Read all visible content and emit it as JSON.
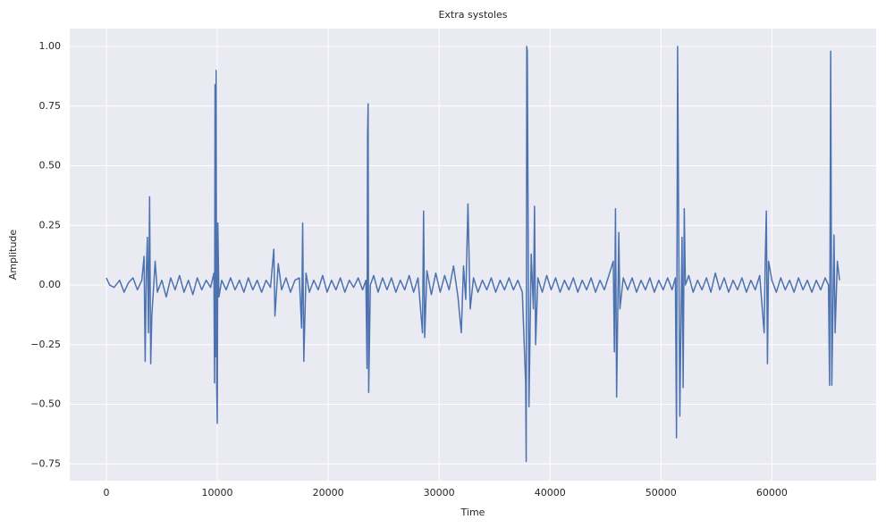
{
  "chart_data": {
    "type": "line",
    "title": "Extra systoles",
    "x_label": "Time",
    "y_label": "Amplitude",
    "xlim": [
      -3300,
      69400
    ],
    "ylim": [
      -0.82,
      1.075
    ],
    "xticks": [
      0,
      10000,
      20000,
      30000,
      40000,
      50000,
      60000
    ],
    "yticks": [
      {
        "value": -0.75,
        "label": "−0.75"
      },
      {
        "value": -0.5,
        "label": "−0.50"
      },
      {
        "value": -0.25,
        "label": "−0.25"
      },
      {
        "value": 0,
        "label": "0.00"
      },
      {
        "value": 0.25,
        "label": "0.25"
      },
      {
        "value": 0.5,
        "label": "0.50"
      },
      {
        "value": 0.75,
        "label": "0.75"
      },
      {
        "value": 1,
        "label": "1.00"
      }
    ],
    "grid": true,
    "series": [
      {
        "color": "#4c72b0",
        "x": [
          0,
          300,
          700,
          1200,
          1600,
          2000,
          2400,
          2800,
          3200,
          3400,
          3500,
          3600,
          3700,
          3800,
          3900,
          4000,
          4100,
          4300,
          4400,
          4600,
          5000,
          5400,
          5800,
          6200,
          6600,
          7000,
          7400,
          7800,
          8200,
          8600,
          9000,
          9400,
          9700,
          9750,
          9800,
          9850,
          9900,
          9950,
          10000,
          10050,
          10150,
          10400,
          10800,
          11200,
          11600,
          12000,
          12400,
          12800,
          13200,
          13600,
          14000,
          14400,
          14800,
          15100,
          15200,
          15500,
          15800,
          16200,
          16600,
          17000,
          17400,
          17600,
          17700,
          17800,
          18000,
          18300,
          18700,
          19100,
          19500,
          19900,
          20300,
          20700,
          21100,
          21500,
          21900,
          22300,
          22700,
          23100,
          23400,
          23500,
          23550,
          23600,
          23650,
          23800,
          24100,
          24500,
          24900,
          25300,
          25700,
          26100,
          26500,
          26900,
          27300,
          27700,
          28100,
          28500,
          28600,
          28700,
          28900,
          29300,
          29700,
          30100,
          30500,
          30900,
          31300,
          31700,
          32000,
          32200,
          32400,
          32600,
          32800,
          33100,
          33500,
          33900,
          34300,
          34700,
          35100,
          35500,
          35900,
          36300,
          36700,
          37100,
          37500,
          37800,
          37850,
          37900,
          37950,
          38100,
          38300,
          38500,
          38600,
          38700,
          38900,
          39300,
          39700,
          40100,
          40500,
          40900,
          41300,
          41700,
          42100,
          42500,
          42900,
          43300,
          43700,
          44100,
          44500,
          44900,
          45300,
          45700,
          45800,
          45900,
          46000,
          46200,
          46300,
          46600,
          47000,
          47400,
          47800,
          48200,
          48600,
          49000,
          49400,
          49800,
          50200,
          50600,
          51000,
          51300,
          51400,
          51500,
          51700,
          51900,
          52000,
          52100,
          52200,
          52500,
          52900,
          53300,
          53700,
          54100,
          54500,
          54900,
          55300,
          55700,
          56100,
          56500,
          56900,
          57300,
          57700,
          58100,
          58500,
          58900,
          59300,
          59400,
          59500,
          59600,
          59700,
          60000,
          60400,
          60800,
          61200,
          61600,
          62000,
          62400,
          62800,
          63200,
          63600,
          64000,
          64400,
          64800,
          65100,
          65200,
          65300,
          65400,
          65600,
          65700,
          65900,
          66100
        ],
        "values": [
          0.03,
          0.0,
          -0.01,
          0.02,
          -0.03,
          0.01,
          0.03,
          -0.02,
          0.02,
          0.12,
          -0.32,
          0.05,
          0.2,
          -0.2,
          0.37,
          -0.33,
          -0.13,
          0.02,
          0.1,
          -0.03,
          0.02,
          -0.05,
          0.03,
          -0.02,
          0.04,
          -0.03,
          0.02,
          -0.04,
          0.03,
          -0.02,
          0.02,
          -0.01,
          0.05,
          -0.41,
          0.84,
          -0.3,
          0.9,
          -0.43,
          -0.58,
          0.26,
          -0.05,
          0.02,
          -0.02,
          0.03,
          -0.02,
          0.02,
          -0.03,
          0.03,
          -0.02,
          0.02,
          -0.03,
          0.02,
          -0.01,
          0.15,
          -0.13,
          0.09,
          -0.02,
          0.03,
          -0.03,
          0.02,
          0.03,
          -0.18,
          0.26,
          -0.32,
          0.05,
          -0.03,
          0.02,
          -0.02,
          0.04,
          -0.03,
          0.02,
          -0.02,
          0.03,
          -0.03,
          0.02,
          -0.01,
          0.03,
          -0.02,
          0.02,
          -0.35,
          0.63,
          0.76,
          -0.45,
          0.0,
          0.04,
          -0.03,
          0.03,
          -0.02,
          0.03,
          -0.03,
          0.02,
          -0.02,
          0.04,
          -0.03,
          0.03,
          -0.2,
          0.31,
          -0.22,
          0.06,
          -0.04,
          0.05,
          -0.03,
          0.04,
          -0.02,
          0.08,
          -0.05,
          -0.2,
          0.08,
          -0.06,
          0.34,
          -0.1,
          0.03,
          -0.03,
          0.02,
          -0.02,
          0.03,
          -0.03,
          0.02,
          -0.02,
          0.03,
          -0.02,
          0.02,
          -0.03,
          -0.41,
          -0.74,
          1.0,
          0.98,
          -0.51,
          0.13,
          -0.1,
          0.33,
          -0.25,
          0.03,
          -0.03,
          0.04,
          -0.02,
          0.03,
          -0.03,
          0.02,
          -0.02,
          0.03,
          -0.03,
          0.02,
          -0.02,
          0.03,
          -0.03,
          0.02,
          -0.02,
          0.04,
          0.1,
          -0.28,
          0.32,
          -0.47,
          0.22,
          -0.1,
          0.03,
          -0.02,
          0.03,
          -0.03,
          0.02,
          -0.02,
          0.03,
          -0.03,
          0.02,
          -0.02,
          0.03,
          -0.02,
          0.03,
          -0.64,
          1.0,
          -0.55,
          0.2,
          -0.43,
          0.32,
          0.0,
          0.04,
          -0.03,
          0.02,
          -0.02,
          0.03,
          -0.03,
          0.05,
          -0.02,
          0.03,
          -0.03,
          0.02,
          -0.02,
          0.03,
          -0.03,
          0.02,
          -0.02,
          0.04,
          -0.2,
          0.1,
          0.31,
          -0.33,
          0.1,
          0.02,
          -0.03,
          0.03,
          -0.02,
          0.02,
          -0.03,
          0.03,
          -0.02,
          0.02,
          -0.03,
          0.02,
          -0.02,
          0.03,
          0.0,
          -0.42,
          0.98,
          -0.42,
          0.21,
          -0.2,
          0.1,
          0.02
        ]
      }
    ]
  }
}
